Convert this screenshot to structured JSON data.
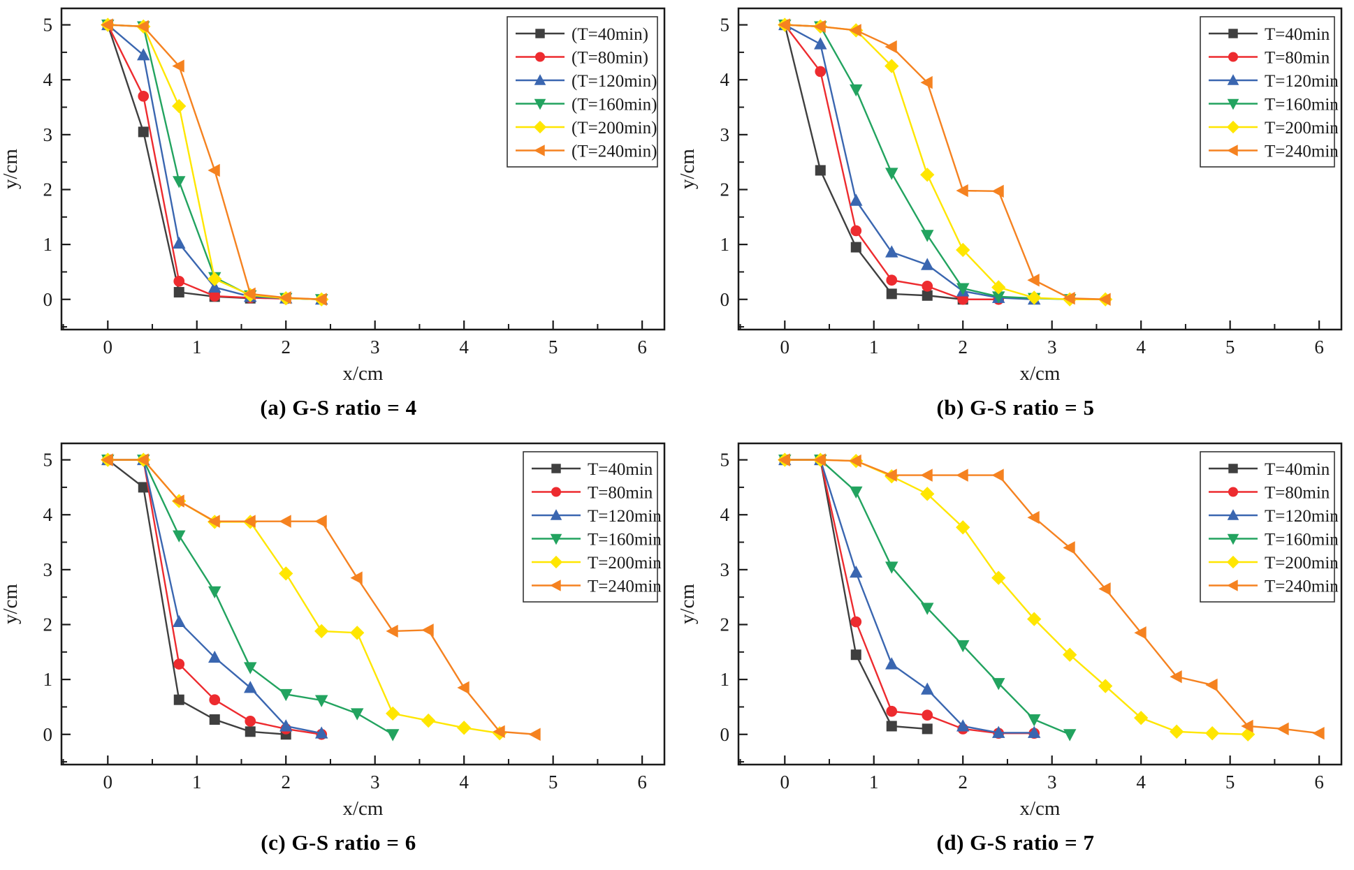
{
  "chart_data": [
    {
      "type": "line",
      "panel": "a",
      "title": "(a) G-S ratio = 4",
      "xlabel": "x/cm",
      "ylabel": "y/cm",
      "xlim": [
        -0.52,
        6.25
      ],
      "ylim": [
        -0.55,
        5.3
      ],
      "xticks": [
        0,
        1,
        2,
        3,
        4,
        5,
        6
      ],
      "yticks": [
        0,
        1,
        2,
        3,
        4,
        5
      ],
      "legend_position": "top-right",
      "grid": false,
      "series": [
        {
          "name": "(T=40min)",
          "color": "#3f3f3f",
          "marker": "square",
          "x": [
            0,
            0.4,
            0.8,
            1.2,
            1.6
          ],
          "y": [
            5,
            3.05,
            0.13,
            0.05,
            0.02
          ]
        },
        {
          "name": "(T=80min)",
          "color": "#ed2b2f",
          "marker": "circle",
          "x": [
            0,
            0.4,
            0.8,
            1.2,
            1.6,
            2.0
          ],
          "y": [
            5,
            3.7,
            0.33,
            0.06,
            0.03,
            0.01
          ]
        },
        {
          "name": "(T=120min)",
          "color": "#3a66b0",
          "marker": "triangle-up",
          "x": [
            0,
            0.4,
            0.8,
            1.2,
            1.6,
            2.0,
            2.4
          ],
          "y": [
            5,
            4.45,
            1.02,
            0.22,
            0.05,
            0.02,
            0.0
          ]
        },
        {
          "name": "(T=160min)",
          "color": "#22a35f",
          "marker": "triangle-down",
          "x": [
            0,
            0.4,
            0.8,
            1.2,
            1.6,
            2.0,
            2.4
          ],
          "y": [
            5,
            4.97,
            2.15,
            0.4,
            0.07,
            0.02,
            0.0
          ]
        },
        {
          "name": "(T=200min)",
          "color": "#ffe600",
          "marker": "diamond",
          "x": [
            0,
            0.4,
            0.8,
            1.2,
            1.6,
            2.0,
            2.4
          ],
          "y": [
            5,
            4.97,
            3.52,
            0.37,
            0.08,
            0.02,
            0.0
          ]
        },
        {
          "name": "(T=240min)",
          "color": "#f58220",
          "marker": "triangle-left",
          "x": [
            0,
            0.4,
            0.8,
            1.2,
            1.6,
            2.0,
            2.4
          ],
          "y": [
            5,
            4.97,
            4.25,
            2.35,
            0.1,
            0.03,
            0.0
          ]
        }
      ]
    },
    {
      "type": "line",
      "panel": "b",
      "title": "(b) G-S ratio = 5",
      "xlabel": "x/cm",
      "ylabel": "y/cm",
      "xlim": [
        -0.52,
        6.25
      ],
      "ylim": [
        -0.55,
        5.3
      ],
      "xticks": [
        0,
        1,
        2,
        3,
        4,
        5,
        6
      ],
      "yticks": [
        0,
        1,
        2,
        3,
        4,
        5
      ],
      "legend_position": "top-right",
      "grid": false,
      "series": [
        {
          "name": "T=40min",
          "color": "#3f3f3f",
          "marker": "square",
          "x": [
            0,
            0.4,
            0.8,
            1.2,
            1.6,
            2.0
          ],
          "y": [
            5,
            2.35,
            0.95,
            0.1,
            0.07,
            0.0
          ]
        },
        {
          "name": "T=80min",
          "color": "#ed2b2f",
          "marker": "circle",
          "x": [
            0,
            0.4,
            0.8,
            1.2,
            1.6,
            2.0,
            2.4
          ],
          "y": [
            5,
            4.15,
            1.25,
            0.35,
            0.24,
            0.0,
            0.0
          ]
        },
        {
          "name": "T=120min",
          "color": "#3a66b0",
          "marker": "triangle-up",
          "x": [
            0,
            0.4,
            0.8,
            1.2,
            1.6,
            2.0,
            2.4,
            2.8
          ],
          "y": [
            5,
            4.65,
            1.8,
            0.86,
            0.63,
            0.15,
            0.03,
            0.0
          ]
        },
        {
          "name": "T=160min",
          "color": "#22a35f",
          "marker": "triangle-down",
          "x": [
            0,
            0.4,
            0.8,
            1.2,
            1.6,
            2.0,
            2.4,
            2.8,
            3.2
          ],
          "y": [
            5,
            4.97,
            3.82,
            2.3,
            1.17,
            0.2,
            0.05,
            0.02,
            0.0
          ]
        },
        {
          "name": "T=200min",
          "color": "#ffe600",
          "marker": "diamond",
          "x": [
            0,
            0.4,
            0.8,
            1.2,
            1.6,
            2.0,
            2.4,
            2.8,
            3.2,
            3.6
          ],
          "y": [
            5,
            4.97,
            4.9,
            4.25,
            2.27,
            0.9,
            0.22,
            0.03,
            0.0,
            0.0
          ]
        },
        {
          "name": "T=240min",
          "color": "#f58220",
          "marker": "triangle-left",
          "x": [
            0,
            0.4,
            0.8,
            1.2,
            1.6,
            2.0,
            2.4,
            2.8,
            3.2,
            3.6
          ],
          "y": [
            5,
            4.97,
            4.9,
            4.6,
            3.95,
            1.98,
            1.97,
            0.35,
            0.02,
            0.0
          ]
        }
      ]
    },
    {
      "type": "line",
      "panel": "c",
      "title": "(c) G-S ratio = 6",
      "xlabel": "x/cm",
      "ylabel": "y/cm",
      "xlim": [
        -0.52,
        6.25
      ],
      "ylim": [
        -0.55,
        5.3
      ],
      "xticks": [
        0,
        1,
        2,
        3,
        4,
        5,
        6
      ],
      "yticks": [
        0,
        1,
        2,
        3,
        4,
        5
      ],
      "legend_position": "top-right",
      "grid": false,
      "series": [
        {
          "name": "T=40min",
          "color": "#3f3f3f",
          "marker": "square",
          "x": [
            0,
            0.4,
            0.8,
            1.2,
            1.6,
            2.0
          ],
          "y": [
            5,
            4.5,
            0.63,
            0.27,
            0.05,
            0.0
          ]
        },
        {
          "name": "T=80min",
          "color": "#ed2b2f",
          "marker": "circle",
          "x": [
            0,
            0.4,
            0.8,
            1.2,
            1.6,
            2.0,
            2.4
          ],
          "y": [
            5,
            5,
            1.28,
            0.63,
            0.24,
            0.1,
            0.0
          ]
        },
        {
          "name": "T=120min",
          "color": "#3a66b0",
          "marker": "triangle-up",
          "x": [
            0,
            0.4,
            0.8,
            1.2,
            1.6,
            2.0,
            2.4
          ],
          "y": [
            5,
            5,
            2.05,
            1.4,
            0.85,
            0.15,
            0.02
          ]
        },
        {
          "name": "T=160min",
          "color": "#22a35f",
          "marker": "triangle-down",
          "x": [
            0,
            0.4,
            0.8,
            1.2,
            1.6,
            2.0,
            2.4,
            2.8,
            3.2
          ],
          "y": [
            5,
            5,
            3.62,
            2.6,
            1.22,
            0.73,
            0.62,
            0.38,
            0.0
          ]
        },
        {
          "name": "T=200min",
          "color": "#ffe600",
          "marker": "diamond",
          "x": [
            0,
            0.4,
            0.8,
            1.2,
            1.6,
            2.0,
            2.4,
            2.8,
            3.2,
            3.6,
            4.0,
            4.4
          ],
          "y": [
            5,
            5,
            4.25,
            3.87,
            3.87,
            2.93,
            1.88,
            1.85,
            0.38,
            0.25,
            0.12,
            0.02
          ]
        },
        {
          "name": "T=240min",
          "color": "#f58220",
          "marker": "triangle-left",
          "x": [
            0,
            0.4,
            0.8,
            1.2,
            1.6,
            2.0,
            2.4,
            2.8,
            3.2,
            3.6,
            4.0,
            4.4,
            4.8
          ],
          "y": [
            5,
            5,
            4.25,
            3.88,
            3.88,
            3.88,
            3.88,
            2.85,
            1.88,
            1.9,
            0.85,
            0.05,
            0.0
          ]
        }
      ]
    },
    {
      "type": "line",
      "panel": "d",
      "title": "(d) G-S ratio = 7",
      "xlabel": "x/cm",
      "ylabel": "y/cm",
      "xlim": [
        -0.52,
        6.25
      ],
      "ylim": [
        -0.55,
        5.3
      ],
      "xticks": [
        0,
        1,
        2,
        3,
        4,
        5,
        6
      ],
      "yticks": [
        0,
        1,
        2,
        3,
        4,
        5
      ],
      "legend_position": "top-right",
      "grid": false,
      "series": [
        {
          "name": "T=40min",
          "color": "#3f3f3f",
          "marker": "square",
          "x": [
            0,
            0.4,
            0.8,
            1.2,
            1.6
          ],
          "y": [
            5,
            5,
            1.45,
            0.15,
            0.1
          ]
        },
        {
          "name": "T=80min",
          "color": "#ed2b2f",
          "marker": "circle",
          "x": [
            0,
            0.4,
            0.8,
            1.2,
            1.6,
            2.0,
            2.4,
            2.8
          ],
          "y": [
            5,
            5,
            2.05,
            0.42,
            0.35,
            0.1,
            0.02,
            0.02
          ]
        },
        {
          "name": "T=120min",
          "color": "#3a66b0",
          "marker": "triangle-up",
          "x": [
            0,
            0.4,
            0.8,
            1.2,
            1.6,
            2.0,
            2.4,
            2.8
          ],
          "y": [
            5,
            5,
            2.95,
            1.28,
            0.82,
            0.15,
            0.03,
            0.03
          ]
        },
        {
          "name": "T=160min",
          "color": "#22a35f",
          "marker": "triangle-down",
          "x": [
            0,
            0.4,
            0.8,
            1.2,
            1.6,
            2.0,
            2.4,
            2.8,
            3.2
          ],
          "y": [
            5,
            5,
            4.42,
            3.05,
            2.3,
            1.62,
            0.93,
            0.27,
            0.0
          ]
        },
        {
          "name": "T=200min",
          "color": "#ffe600",
          "marker": "diamond",
          "x": [
            0,
            0.4,
            0.8,
            1.2,
            1.6,
            2.0,
            2.4,
            2.8,
            3.2,
            3.6,
            4.0,
            4.4,
            4.8,
            5.2
          ],
          "y": [
            5,
            5,
            4.98,
            4.7,
            4.38,
            3.77,
            2.85,
            2.1,
            1.45,
            0.88,
            0.3,
            0.05,
            0.02,
            0.0
          ]
        },
        {
          "name": "T=240min",
          "color": "#f58220",
          "marker": "triangle-left",
          "x": [
            0,
            0.4,
            0.8,
            1.2,
            1.6,
            2.0,
            2.4,
            2.8,
            3.2,
            3.6,
            4.0,
            4.4,
            4.8,
            5.2,
            5.6,
            6.0
          ],
          "y": [
            5,
            5,
            4.98,
            4.72,
            4.72,
            4.72,
            4.72,
            3.95,
            3.4,
            2.65,
            1.85,
            1.05,
            0.9,
            0.15,
            0.1,
            0.02
          ]
        }
      ]
    }
  ]
}
